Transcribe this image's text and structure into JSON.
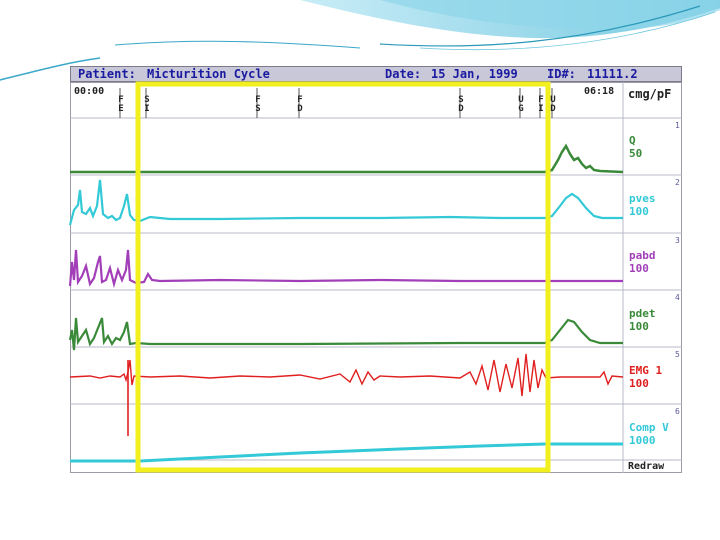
{
  "header": {
    "patient_label": "Patient:",
    "patient_value": "Micturition Cycle",
    "date_label": "Date:",
    "date_value": "15 Jan, 1999",
    "id_label": "ID#:",
    "id_value": "11111.2"
  },
  "timeline": {
    "start_time": "00:00",
    "end_time": "06:18",
    "units": "cmg/pF",
    "event_markers": [
      {
        "top": "F",
        "bottom": "E"
      },
      {
        "top": "S",
        "bottom": "I"
      },
      {
        "top": "F",
        "bottom": "S"
      },
      {
        "top": "F",
        "bottom": "D"
      },
      {
        "top": "S",
        "bottom": "D"
      },
      {
        "top": "U",
        "bottom": "G"
      },
      {
        "top": "F",
        "bottom": "I"
      },
      {
        "top": "U",
        "bottom": "D"
      }
    ]
  },
  "channels": [
    {
      "number": "1",
      "name": "Q",
      "scale": "50",
      "color": "#3a8a3a"
    },
    {
      "number": "2",
      "name": "pves",
      "scale": "100",
      "color": "#33c9d6"
    },
    {
      "number": "3",
      "name": "pabd",
      "scale": "100",
      "color": "#a23fb8"
    },
    {
      "number": "4",
      "name": "pdet",
      "scale": "100",
      "color": "#3a8a3a"
    },
    {
      "number": "5",
      "name": "EMG 1",
      "scale": "100",
      "color": "#e02020"
    },
    {
      "number": "6",
      "name": "Comp V",
      "scale": "1000",
      "color": "#33c9d6"
    }
  ],
  "redraw_label": "Redraw",
  "highlight_color": "#f2ef1e"
}
